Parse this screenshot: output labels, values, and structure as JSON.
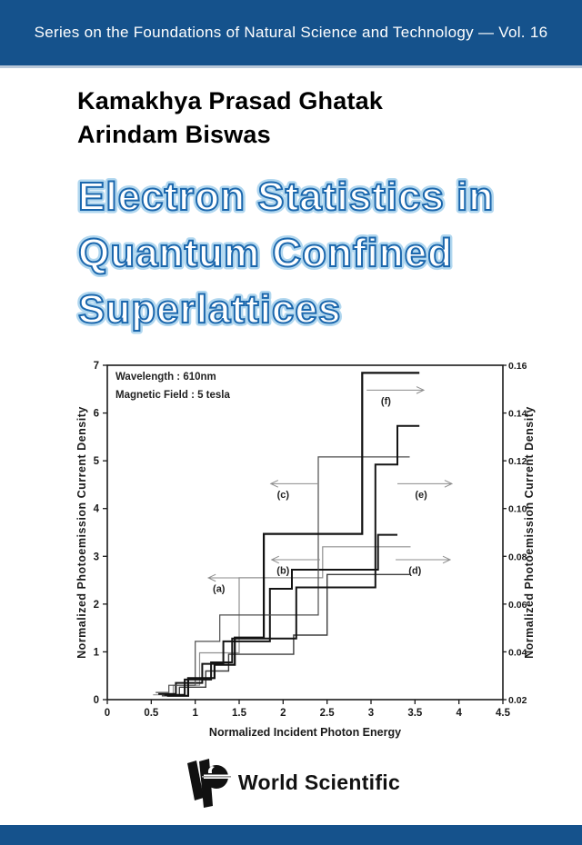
{
  "header": {
    "series_line": "Series on the Foundations of Natural Science and Technology — Vol. 16"
  },
  "authors": [
    "Kamakhya Prasad Ghatak",
    "Arindam Biswas"
  ],
  "title_lines": [
    "Electron Statistics in",
    "Quantum Confined",
    "Superlattices"
  ],
  "publisher": {
    "name": "World Scientific"
  },
  "colors": {
    "band_blue": "#15528C",
    "band_separator": "#b9c8d9",
    "title_stroke": "#1B67AD",
    "title_glow": "#A9D3EE",
    "axis_ink": "#1a1a1a",
    "arrow_grey": "#8c8c8c"
  },
  "chart_data": {
    "type": "line",
    "style": "staircase",
    "title": "",
    "xlabel": "Normalized Incident Photon Energy",
    "ylabel_left": "Normalized Photoemission Current Density",
    "ylabel_right": "Normalized Photoemission Current Density",
    "xlim": [
      0,
      4.5
    ],
    "ylim_left": [
      0,
      7
    ],
    "ylim_right": [
      0.02,
      0.16
    ],
    "xticks": [
      "0",
      "0.5",
      "1",
      "1.5",
      "2",
      "2.5",
      "3",
      "3.5",
      "4",
      "4.5"
    ],
    "yticks_left": [
      "0",
      "1",
      "2",
      "3",
      "4",
      "5",
      "6",
      "7"
    ],
    "yticks_right": [
      "0.02",
      "0.04",
      "0.06",
      "0.08",
      "0.10",
      "0.12",
      "0.14",
      "0.16"
    ],
    "grid": false,
    "annotations": [
      "Wavelength : 610nm",
      "Magnetic Field : 5 tesla"
    ],
    "series": [
      {
        "name": "a",
        "color": "#909090",
        "width": 1.2,
        "points": [
          [
            0.52,
            0.1
          ],
          [
            0.75,
            0.1
          ],
          [
            0.75,
            0.3
          ],
          [
            1.05,
            0.3
          ],
          [
            1.05,
            0.98
          ],
          [
            1.5,
            0.98
          ],
          [
            1.5,
            2.55
          ],
          [
            2.45,
            2.55
          ],
          [
            2.45,
            3.2
          ],
          [
            3.45,
            3.2
          ]
        ]
      },
      {
        "name": "b",
        "color": "#141414",
        "width": 2,
        "points": [
          [
            0.58,
            0.12
          ],
          [
            0.78,
            0.12
          ],
          [
            0.78,
            0.35
          ],
          [
            1.08,
            0.35
          ],
          [
            1.08,
            0.75
          ],
          [
            1.32,
            0.75
          ],
          [
            1.32,
            1.22
          ],
          [
            1.85,
            1.22
          ],
          [
            1.85,
            2.32
          ],
          [
            2.1,
            2.32
          ],
          [
            2.1,
            2.72
          ],
          [
            3.08,
            2.72
          ],
          [
            3.08,
            3.45
          ],
          [
            3.3,
            3.45
          ]
        ]
      },
      {
        "name": "c",
        "color": "#4d4d4d",
        "width": 1.2,
        "points": [
          [
            0.55,
            0.15
          ],
          [
            0.7,
            0.15
          ],
          [
            0.7,
            0.3
          ],
          [
            1.0,
            0.3
          ],
          [
            1.0,
            1.22
          ],
          [
            1.28,
            1.22
          ],
          [
            1.28,
            1.77
          ],
          [
            2.4,
            1.77
          ],
          [
            2.4,
            5.08
          ],
          [
            3.44,
            5.08
          ]
        ]
      },
      {
        "name": "d",
        "color": "#3d3d3d",
        "width": 1.4,
        "points": [
          [
            0.62,
            0.08
          ],
          [
            0.82,
            0.08
          ],
          [
            0.82,
            0.26
          ],
          [
            1.12,
            0.26
          ],
          [
            1.12,
            0.6
          ],
          [
            1.38,
            0.6
          ],
          [
            1.38,
            0.95
          ],
          [
            2.12,
            0.95
          ],
          [
            2.12,
            1.35
          ],
          [
            2.5,
            1.35
          ],
          [
            2.5,
            2.62
          ],
          [
            3.44,
            2.62
          ]
        ]
      },
      {
        "name": "e",
        "color": "#141414",
        "width": 2,
        "points": [
          [
            0.65,
            0.1
          ],
          [
            0.88,
            0.1
          ],
          [
            0.88,
            0.42
          ],
          [
            1.18,
            0.42
          ],
          [
            1.18,
            0.78
          ],
          [
            1.42,
            0.78
          ],
          [
            1.42,
            1.28
          ],
          [
            2.15,
            1.28
          ],
          [
            2.15,
            2.35
          ],
          [
            3.05,
            2.35
          ],
          [
            3.05,
            4.92
          ],
          [
            3.3,
            4.92
          ],
          [
            3.3,
            5.73
          ],
          [
            3.55,
            5.73
          ]
        ]
      },
      {
        "name": "f",
        "color": "#111111",
        "width": 2.2,
        "points": [
          [
            0.68,
            0.08
          ],
          [
            0.92,
            0.08
          ],
          [
            0.92,
            0.45
          ],
          [
            1.22,
            0.45
          ],
          [
            1.22,
            0.73
          ],
          [
            1.45,
            0.73
          ],
          [
            1.45,
            1.3
          ],
          [
            1.78,
            1.3
          ],
          [
            1.78,
            3.47
          ],
          [
            2.9,
            3.47
          ],
          [
            2.9,
            6.84
          ],
          [
            3.55,
            6.84
          ]
        ]
      }
    ],
    "curve_labels": [
      {
        "label": "(a)",
        "lx": 1.27,
        "ly": 2.25,
        "ay": 2.55,
        "ax1": 1.5,
        "ax2": 1.15
      },
      {
        "label": "(b)",
        "lx": 2.0,
        "ly": 2.63,
        "ay": 2.93,
        "ax1": 2.42,
        "ax2": 1.87
      },
      {
        "label": "(c)",
        "lx": 2.0,
        "ly": 4.22,
        "ay": 4.52,
        "ax1": 2.39,
        "ax2": 1.86
      },
      {
        "label": "(d)",
        "lx": 3.5,
        "ly": 2.63,
        "ay": 2.93,
        "ax1": 3.28,
        "ax2": 3.9
      },
      {
        "label": "(e)",
        "lx": 3.57,
        "ly": 4.22,
        "ay": 4.52,
        "ax1": 3.3,
        "ax2": 3.92
      },
      {
        "label": "(f)",
        "lx": 3.17,
        "ly": 6.18,
        "ay": 6.48,
        "ax1": 2.95,
        "ax2": 3.6
      }
    ]
  }
}
